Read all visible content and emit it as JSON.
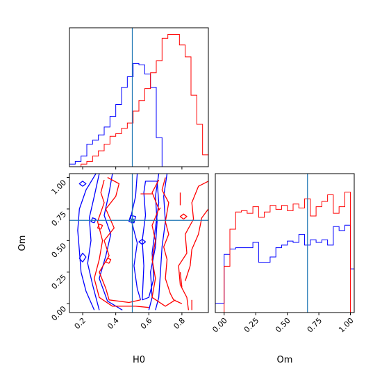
{
  "chart_data": [
    {
      "panel": "H0 marginal",
      "type": "histogram",
      "xlim": [
        0.12,
        0.96
      ],
      "truth": {
        "value": 0.5,
        "color": "#1f77b4"
      },
      "series": [
        {
          "color": "#0000ff",
          "bin_edges": [
            0.12,
            0.155,
            0.19,
            0.225,
            0.26,
            0.295,
            0.33,
            0.365,
            0.4,
            0.435,
            0.47,
            0.505,
            0.54,
            0.575,
            0.61,
            0.645,
            0.68,
            0.715,
            0.75,
            0.785,
            0.82,
            0.855,
            0.89,
            0.925,
            0.96
          ],
          "heights": [
            0.02,
            0.04,
            0.08,
            0.17,
            0.2,
            0.24,
            0.3,
            0.38,
            0.47,
            0.6,
            0.68,
            0.78,
            0.77,
            0.7,
            0.6,
            0.22,
            0,
            0,
            0,
            0,
            0,
            0,
            0,
            0
          ]
        },
        {
          "color": "#ff0000",
          "bin_edges": [
            0.12,
            0.155,
            0.19,
            0.225,
            0.26,
            0.295,
            0.33,
            0.365,
            0.4,
            0.435,
            0.47,
            0.505,
            0.54,
            0.575,
            0.61,
            0.645,
            0.68,
            0.715,
            0.75,
            0.785,
            0.82,
            0.855,
            0.89,
            0.925,
            0.96
          ],
          "heights": [
            0,
            0,
            0.02,
            0.04,
            0.08,
            0.12,
            0.17,
            0.23,
            0.25,
            0.29,
            0.33,
            0.42,
            0.5,
            0.59,
            0.71,
            0.8,
            0.97,
            1.0,
            1.0,
            0.92,
            0.83,
            0.54,
            0.32,
            0.09
          ]
        }
      ],
      "ylim": [
        0,
        1.05
      ]
    },
    {
      "panel": "H0 vs Om 2D",
      "type": "contour",
      "xlim": [
        0.12,
        0.96
      ],
      "ylim": [
        -0.07,
        1.03
      ],
      "xlabel": "H0",
      "ylabel": "Om",
      "xticks": [
        "0.2",
        "0.4",
        "0.6",
        "0.8"
      ],
      "xtick_values": [
        0.2,
        0.4,
        0.6,
        0.8
      ],
      "yticks": [
        "0.00",
        "0.25",
        "0.50",
        "0.75",
        "1.00"
      ],
      "ytick_values": [
        0.0,
        0.25,
        0.5,
        0.75,
        1.0
      ],
      "truth": {
        "x": 0.5,
        "y": 0.66,
        "color": "#1f77b4"
      },
      "series": [
        {
          "color": "#0000ff",
          "contours": [
            [
              [
                0.28,
                1.03
              ],
              [
                0.22,
                0.9
              ],
              [
                0.18,
                0.75
              ],
              [
                0.17,
                0.58
              ],
              [
                0.18,
                0.42
              ],
              [
                0.19,
                0.25
              ],
              [
                0.22,
                0.1
              ],
              [
                0.27,
                -0.05
              ]
            ],
            [
              [
                0.3,
                1.03
              ],
              [
                0.27,
                0.85
              ],
              [
                0.24,
                0.68
              ],
              [
                0.25,
                0.5
              ],
              [
                0.23,
                0.32
              ],
              [
                0.26,
                0.15
              ],
              [
                0.3,
                -0.05
              ]
            ],
            [
              [
                0.38,
                1.03
              ],
              [
                0.36,
                0.88
              ],
              [
                0.33,
                0.7
              ],
              [
                0.37,
                0.55
              ],
              [
                0.34,
                0.38
              ],
              [
                0.3,
                0.2
              ],
              [
                0.35,
                0.02
              ],
              [
                0.44,
                -0.05
              ]
            ],
            [
              [
                0.53,
                1.03
              ],
              [
                0.52,
                0.85
              ],
              [
                0.49,
                0.68
              ],
              [
                0.53,
                0.48
              ],
              [
                0.51,
                0.3
              ],
              [
                0.53,
                0.12
              ],
              [
                0.55,
                0.03
              ]
            ],
            [
              [
                0.56,
                0.03
              ],
              [
                0.57,
                0.3
              ],
              [
                0.56,
                0.5
              ],
              [
                0.58,
                0.7
              ],
              [
                0.57,
                0.88
              ],
              [
                0.58,
                0.97
              ],
              [
                0.65,
                0.97
              ],
              [
                0.66,
                0.8
              ],
              [
                0.64,
                0.6
              ],
              [
                0.62,
                0.4
              ],
              [
                0.63,
                0.2
              ],
              [
                0.6,
                0.05
              ],
              [
                0.56,
                0.03
              ]
            ],
            [
              [
                0.66,
                1.03
              ],
              [
                0.64,
                0.85
              ],
              [
                0.65,
                0.65
              ],
              [
                0.64,
                0.45
              ],
              [
                0.61,
                0.25
              ],
              [
                0.62,
                0.05
              ],
              [
                0.6,
                -0.05
              ]
            ],
            [
              [
                0.71,
                1.03
              ],
              [
                0.69,
                0.85
              ],
              [
                0.7,
                0.65
              ],
              [
                0.68,
                0.45
              ],
              [
                0.67,
                0.25
              ],
              [
                0.66,
                0.05
              ],
              [
                0.64,
                -0.05
              ]
            ],
            [
              [
                0.2,
                0.93
              ],
              [
                0.22,
                0.95
              ],
              [
                0.2,
                0.97
              ],
              [
                0.18,
                0.95
              ],
              [
                0.2,
                0.93
              ]
            ],
            [
              [
                0.2,
                0.33
              ],
              [
                0.22,
                0.37
              ],
              [
                0.2,
                0.4
              ],
              [
                0.18,
                0.36
              ],
              [
                0.2,
                0.33
              ]
            ],
            [
              [
                0.49,
                0.7
              ],
              [
                0.52,
                0.69
              ],
              [
                0.51,
                0.64
              ],
              [
                0.48,
                0.65
              ],
              [
                0.49,
                0.7
              ]
            ],
            [
              [
                0.56,
                0.47
              ],
              [
                0.58,
                0.49
              ],
              [
                0.56,
                0.51
              ],
              [
                0.54,
                0.49
              ],
              [
                0.56,
                0.47
              ]
            ],
            [
              [
                0.27,
                0.64
              ],
              [
                0.28,
                0.67
              ],
              [
                0.26,
                0.68
              ],
              [
                0.25,
                0.65
              ],
              [
                0.27,
                0.64
              ]
            ]
          ]
        },
        {
          "color": "#ff0000",
          "contours": [
            [
              [
                0.35,
                1.0
              ],
              [
                0.42,
                0.95
              ],
              [
                0.4,
                0.85
              ],
              [
                0.34,
                0.75
              ],
              [
                0.39,
                0.6
              ],
              [
                0.33,
                0.5
              ],
              [
                0.36,
                0.38
              ],
              [
                0.3,
                0.25
              ],
              [
                0.34,
                0.12
              ],
              [
                0.36,
                0.03
              ],
              [
                0.48,
                0.01
              ],
              [
                0.55,
                0.03
              ]
            ],
            [
              [
                0.33,
                0.98
              ],
              [
                0.31,
                0.88
              ],
              [
                0.33,
                0.8
              ],
              [
                0.29,
                0.65
              ],
              [
                0.32,
                0.5
              ],
              [
                0.3,
                0.35
              ],
              [
                0.27,
                0.2
              ],
              [
                0.3,
                0.05
              ],
              [
                0.38,
                -0.02
              ],
              [
                0.52,
                -0.02
              ],
              [
                0.6,
                -0.03
              ]
            ],
            [
              [
                0.66,
                0.98
              ],
              [
                0.62,
                0.88
              ],
              [
                0.66,
                0.75
              ],
              [
                0.62,
                0.62
              ],
              [
                0.64,
                0.5
              ],
              [
                0.62,
                0.35
              ],
              [
                0.64,
                0.2
              ],
              [
                0.62,
                0.05
              ],
              [
                0.7,
                -0.02
              ],
              [
                0.76,
                0.03
              ]
            ],
            [
              [
                0.7,
                1.0
              ],
              [
                0.68,
                0.9
              ],
              [
                0.72,
                0.8
              ],
              [
                0.7,
                0.65
              ],
              [
                0.72,
                0.55
              ],
              [
                0.69,
                0.45
              ],
              [
                0.71,
                0.35
              ],
              [
                0.7,
                0.2
              ],
              [
                0.73,
                0.08
              ],
              [
                0.75,
                0.03
              ],
              [
                0.8,
                0.0
              ]
            ],
            [
              [
                0.96,
                0.97
              ],
              [
                0.9,
                0.93
              ],
              [
                0.86,
                0.8
              ],
              [
                0.87,
                0.67
              ],
              [
                0.82,
                0.55
              ],
              [
                0.83,
                0.4
              ],
              [
                0.78,
                0.3
              ],
              [
                0.79,
                0.15
              ],
              [
                0.83,
                0.05
              ],
              [
                0.84,
                -0.05
              ]
            ],
            [
              [
                0.96,
                0.75
              ],
              [
                0.92,
                0.68
              ],
              [
                0.9,
                0.55
              ],
              [
                0.86,
                0.43
              ],
              [
                0.85,
                0.3
              ],
              [
                0.82,
                0.18
              ]
            ],
            [
              [
                0.55,
                0.87
              ],
              [
                0.62,
                0.87
              ]
            ],
            [
              [
                0.79,
                0.88
              ],
              [
                0.79,
                0.78
              ]
            ],
            [
              [
                0.31,
                0.59
              ],
              [
                0.32,
                0.62
              ],
              [
                0.3,
                0.63
              ],
              [
                0.29,
                0.6
              ],
              [
                0.31,
                0.59
              ]
            ],
            [
              [
                0.36,
                0.32
              ],
              [
                0.37,
                0.35
              ],
              [
                0.35,
                0.36
              ],
              [
                0.34,
                0.33
              ],
              [
                0.36,
                0.32
              ]
            ],
            [
              [
                0.81,
                0.67
              ],
              [
                0.83,
                0.69
              ],
              [
                0.81,
                0.71
              ],
              [
                0.79,
                0.69
              ],
              [
                0.81,
                0.67
              ]
            ],
            [
              [
                0.79,
                0.25
              ],
              [
                0.8,
                0.13
              ]
            ],
            [
              [
                0.86,
                0.03
              ],
              [
                0.86,
                -0.05
              ]
            ],
            [
              [
                0.66,
                0.74
              ],
              [
                0.67,
                0.76
              ]
            ]
          ]
        }
      ]
    },
    {
      "panel": "Om marginal",
      "type": "histogram",
      "xlim": [
        -0.07,
        1.03
      ],
      "xlabel": "Om",
      "xticks": [
        "0.00",
        "0.25",
        "0.50",
        "0.75",
        "1.00"
      ],
      "xtick_values": [
        0.0,
        0.25,
        0.5,
        0.75,
        1.0
      ],
      "truth": {
        "value": 0.66,
        "color": "#1f77b4"
      },
      "ylim": [
        0,
        1.05
      ],
      "series": [
        {
          "color": "#0000ff",
          "bin_edges": [
            -0.07,
            0.0,
            0.0455,
            0.091,
            0.1365,
            0.182,
            0.2275,
            0.273,
            0.3185,
            0.364,
            0.4095,
            0.455,
            0.5005,
            0.546,
            0.5915,
            0.637,
            0.6825,
            0.728,
            0.7735,
            0.819,
            0.8645,
            0.91,
            0.9555,
            1.0,
            1.03
          ],
          "heights": [
            0.07,
            0.44,
            0.48,
            0.49,
            0.49,
            0.49,
            0.53,
            0.38,
            0.38,
            0.42,
            0.49,
            0.51,
            0.54,
            0.53,
            0.59,
            0.51,
            0.55,
            0.53,
            0.55,
            0.51,
            0.65,
            0.62,
            0.66,
            0.33
          ]
        },
        {
          "color": "#ff0000",
          "bin_edges": [
            0.0,
            0.0455,
            0.091,
            0.1365,
            0.182,
            0.2275,
            0.273,
            0.3185,
            0.364,
            0.4095,
            0.455,
            0.5005,
            0.546,
            0.5915,
            0.637,
            0.6825,
            0.728,
            0.7735,
            0.819,
            0.8645,
            0.91,
            0.9555,
            1.0
          ],
          "heights": [
            0.35,
            0.63,
            0.76,
            0.77,
            0.75,
            0.8,
            0.72,
            0.76,
            0.81,
            0.78,
            0.81,
            0.77,
            0.82,
            0.79,
            0.86,
            0.73,
            0.8,
            0.84,
            0.89,
            0.75,
            0.8,
            0.91
          ]
        }
      ]
    }
  ]
}
